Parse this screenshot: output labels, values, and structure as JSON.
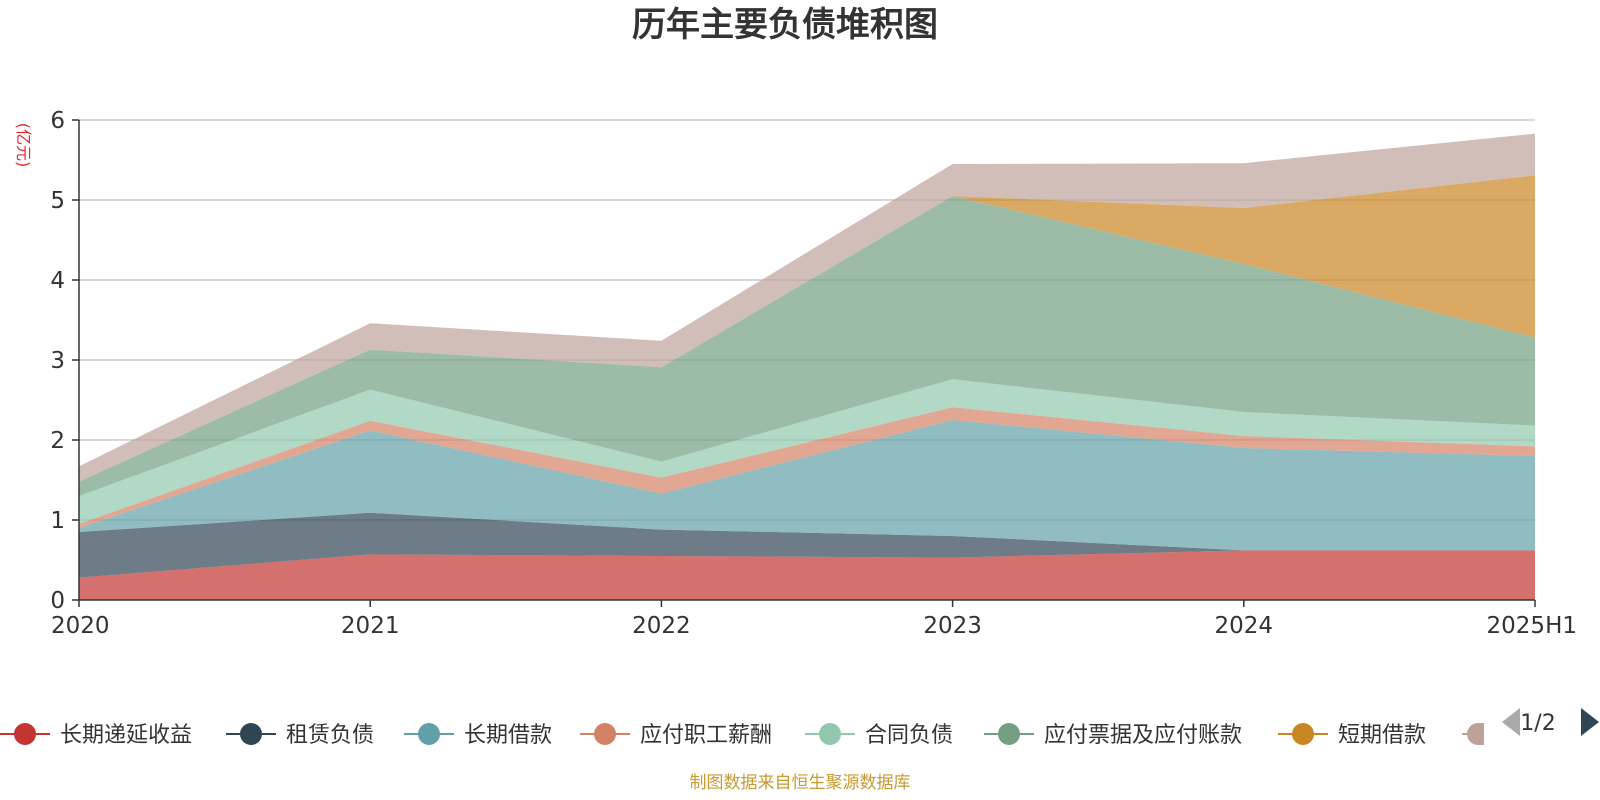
{
  "chart_data": {
    "type": "area",
    "stacked": true,
    "title": "历年主要负债堆积图",
    "unit_label": "(亿元)",
    "categories": [
      "2020",
      "2021",
      "2022",
      "2023",
      "2024",
      "2025H1"
    ],
    "ylim": [
      0,
      6
    ],
    "yticks": [
      "0",
      "1",
      "2",
      "3",
      "4",
      "5",
      "6"
    ],
    "grid": true,
    "legend_position": "bottom",
    "series": [
      {
        "name": "长期递延收益",
        "color": "#c23531",
        "values": [
          0.28,
          0.57,
          0.55,
          0.53,
          0.62,
          0.62
        ]
      },
      {
        "name": "租赁负债",
        "color": "#2f4554",
        "values": [
          0.57,
          0.52,
          0.33,
          0.27,
          0.0,
          0.0
        ]
      },
      {
        "name": "长期借款",
        "color": "#61a0a8",
        "values": [
          0.05,
          1.03,
          0.45,
          1.45,
          1.28,
          1.18
        ]
      },
      {
        "name": "应付职工薪酬",
        "color": "#d48265",
        "values": [
          0.05,
          0.12,
          0.2,
          0.16,
          0.15,
          0.12
        ]
      },
      {
        "name": "合同负债",
        "color": "#91c7ae",
        "values": [
          0.35,
          0.39,
          0.2,
          0.35,
          0.3,
          0.26
        ]
      },
      {
        "name": "应付票据及应付账款",
        "color": "#749f83",
        "values": [
          0.18,
          0.5,
          1.18,
          2.29,
          1.85,
          1.1
        ]
      },
      {
        "name": "短期借款",
        "color": "#ca8622",
        "values": [
          0.0,
          0.0,
          0.0,
          0.0,
          0.7,
          2.03
        ]
      },
      {
        "name": "",
        "color": "#bda29a",
        "values": [
          0.19,
          0.33,
          0.33,
          0.4,
          0.56,
          0.52
        ]
      }
    ]
  },
  "legend": {
    "items": [
      "长期递延收益",
      "租赁负债",
      "长期借款",
      "应付职工薪酬",
      "合同负债",
      "应付票据及应付账款",
      "短期借款"
    ],
    "page_text": "1/2"
  },
  "footer": {
    "source_text": "制图数据来自恒生聚源数据库"
  }
}
